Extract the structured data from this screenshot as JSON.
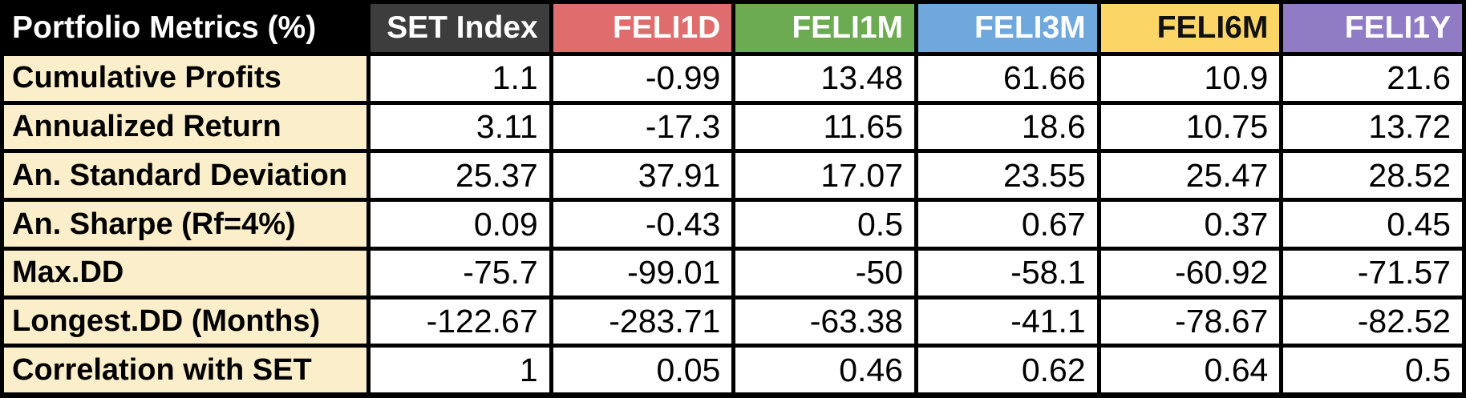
{
  "chart_data": {
    "type": "table",
    "title": "Portfolio Metrics (%)",
    "columns": [
      {
        "label": "SET Index",
        "bg": "#3D3D3D",
        "fg": "#FFFFFF"
      },
      {
        "label": "FELI1D",
        "bg": "#DF6D6D",
        "fg": "#FFFFFF"
      },
      {
        "label": "FELI1M",
        "bg": "#6CAB51",
        "fg": "#FFFFFF"
      },
      {
        "label": "FELI3M",
        "bg": "#6FA8DC",
        "fg": "#FFFFFF"
      },
      {
        "label": "FELI6M",
        "bg": "#FBD666",
        "fg": "#111111"
      },
      {
        "label": "FELI1Y",
        "bg": "#8F7CC4",
        "fg": "#FFFFFF"
      }
    ],
    "rows": [
      {
        "metric": "Cumulative Profits",
        "values": [
          1.1,
          -0.99,
          13.48,
          61.66,
          10.9,
          21.6
        ]
      },
      {
        "metric": "Annualized Return",
        "values": [
          3.11,
          -17.3,
          11.65,
          18.6,
          10.75,
          13.72
        ]
      },
      {
        "metric": "An. Standard Deviation",
        "values": [
          25.37,
          37.91,
          17.07,
          23.55,
          25.47,
          28.52
        ]
      },
      {
        "metric": "An. Sharpe (Rf=4%)",
        "values": [
          0.09,
          -0.43,
          0.5,
          0.67,
          0.37,
          0.45
        ]
      },
      {
        "metric": "Max.DD",
        "values": [
          -75.7,
          -99.01,
          -50,
          -58.1,
          -60.92,
          -71.57
        ]
      },
      {
        "metric": "Longest.DD (Months)",
        "values": [
          -122.67,
          -283.71,
          -63.38,
          -41.1,
          -78.67,
          -82.52
        ]
      },
      {
        "metric": "Correlation with SET",
        "values": [
          1,
          0.05,
          0.46,
          0.62,
          0.64,
          0.5
        ]
      }
    ],
    "colors": {
      "corner_bg": "#000000",
      "corner_fg": "#FFFFFF",
      "metric_bg": "#FBEECB",
      "metric_fg": "#000000",
      "value_bg": "#FFFFFF",
      "value_fg": "#000000",
      "grid_border": "#000000"
    },
    "layout": {
      "grid": "on",
      "value_align": "right",
      "metric_align": "left"
    }
  }
}
